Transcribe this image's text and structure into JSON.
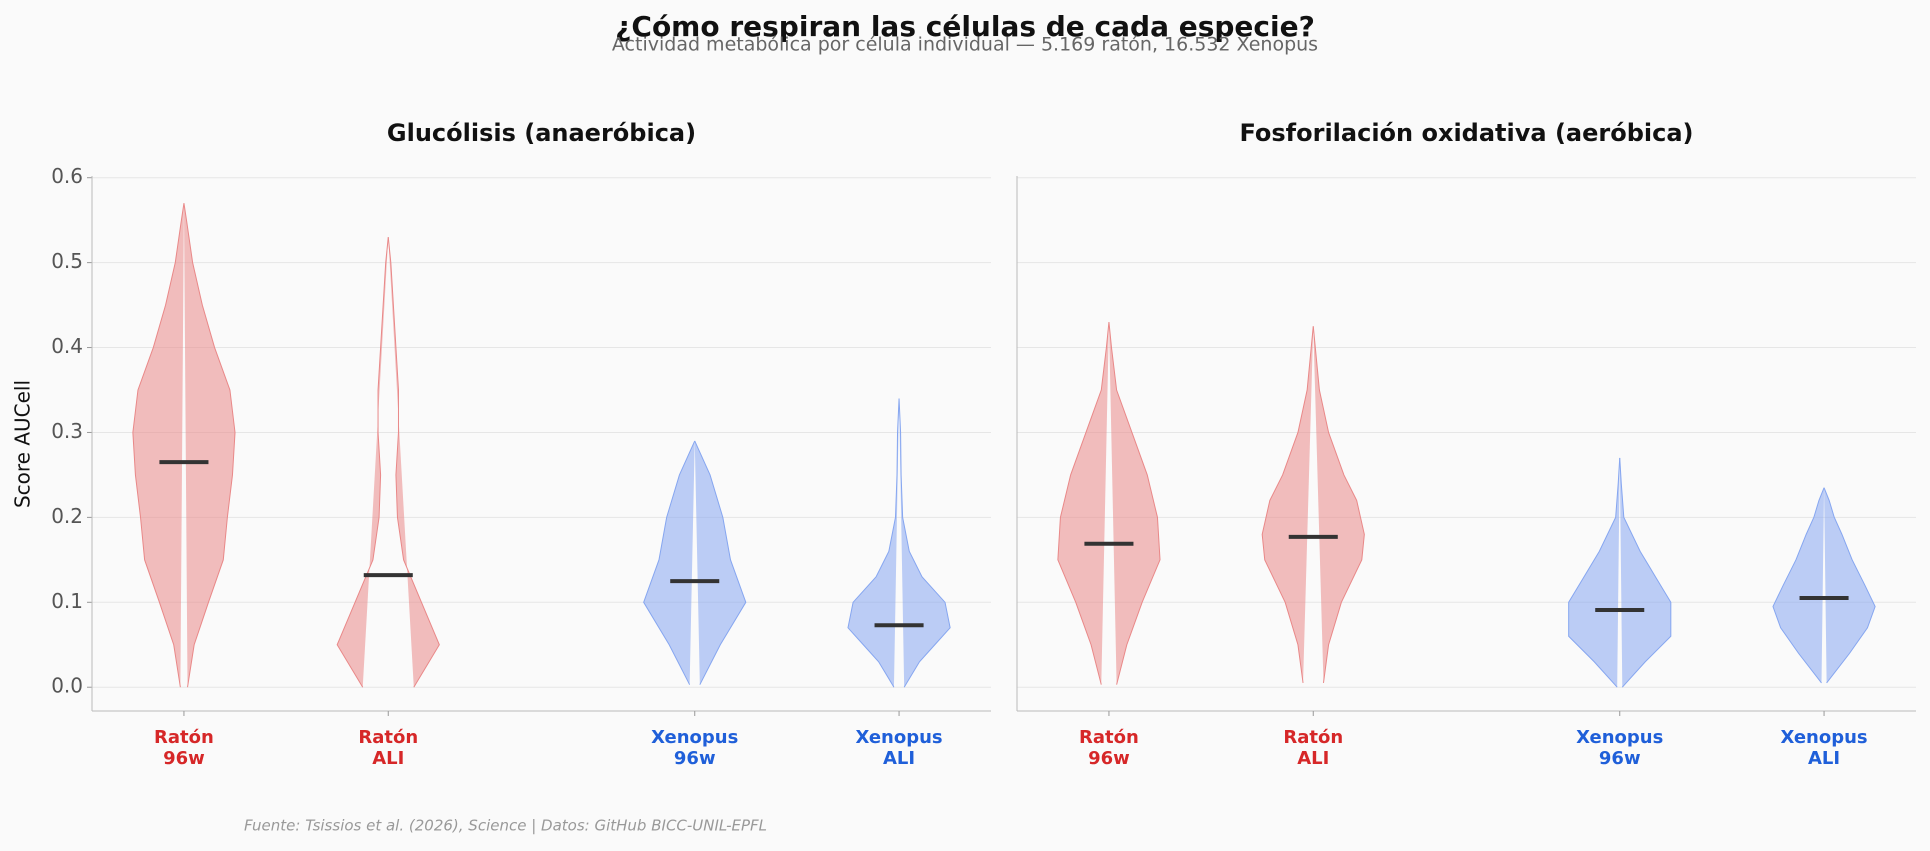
{
  "title": "¿Cómo respiran las células de cada especie?",
  "subtitle": "Actividad metabólica por célula individual — 5.169 ratón, 16.532 Xenopus",
  "source": "Fuente: Tsissios et al. (2026), Science | Datos: GitHub BICC-UNIL-EPFL",
  "chart_data": [
    {
      "type": "violin",
      "title": "Glucólisis (anaeróbica)",
      "ylabel": "Score AUCell",
      "categories": [
        [
          "Ratón",
          "96w"
        ],
        [
          "Ratón",
          "ALI"
        ],
        [
          "Xenopus",
          "96w"
        ],
        [
          "Xenopus",
          "ALI"
        ]
      ],
      "x": [
        0,
        1,
        2.5,
        3.5
      ],
      "label_colors": [
        "#d62728",
        "#d62728",
        "#1f5fd9",
        "#1f5fd9"
      ],
      "colors": [
        "#e98888",
        "#e98888",
        "#86a6f0",
        "#86a6f0"
      ],
      "xlim": [
        -0.45,
        3.95
      ],
      "ylim": [
        -0.028,
        0.602
      ],
      "yticks": [
        {
          "value": 0,
          "label": "0.0"
        },
        0.1,
        0.2,
        0.3,
        0.4,
        0.5,
        0.6
      ],
      "grid": true,
      "medians": [
        0.265,
        0.132,
        0.125,
        0.073
      ],
      "violins": [
        {
          "y": [
            0,
            0.05,
            0.1,
            0.15,
            0.2,
            0.25,
            0.3,
            0.35,
            0.4,
            0.45,
            0.5,
            0.55,
            0.57
          ],
          "width": [
            0.07,
            0.2,
            0.48,
            0.77,
            0.85,
            0.95,
            1.0,
            0.9,
            0.6,
            0.36,
            0.17,
            0.05,
            0
          ]
        },
        {
          "y": [
            0,
            0.05,
            0.1,
            0.15,
            0.2,
            0.25,
            0.3,
            0.35,
            0.4,
            0.45,
            0.5,
            0.53
          ],
          "width": [
            0.5,
            1.0,
            0.65,
            0.3,
            0.18,
            0.15,
            0.2,
            0.2,
            0.15,
            0.1,
            0.05,
            0
          ]
        },
        {
          "y": [
            0.003,
            0.05,
            0.1,
            0.15,
            0.2,
            0.25,
            0.29
          ],
          "width": [
            0.1,
            0.5,
            1.0,
            0.7,
            0.55,
            0.3,
            0
          ]
        },
        {
          "y": [
            0,
            0.03,
            0.05,
            0.07,
            0.1,
            0.13,
            0.16,
            0.2,
            0.25,
            0.3,
            0.34
          ],
          "width": [
            0.1,
            0.4,
            0.7,
            1.0,
            0.9,
            0.45,
            0.2,
            0.07,
            0.04,
            0.03,
            0
          ]
        }
      ]
    },
    {
      "type": "violin",
      "title": "Fosforilación oxidativa (aeróbica)",
      "categories": [
        [
          "Ratón",
          "96w"
        ],
        [
          "Ratón",
          "ALI"
        ],
        [
          "Xenopus",
          "96w"
        ],
        [
          "Xenopus",
          "ALI"
        ]
      ],
      "x": [
        0,
        1,
        2.5,
        3.5
      ],
      "label_colors": [
        "#d62728",
        "#d62728",
        "#1f5fd9",
        "#1f5fd9"
      ],
      "colors": [
        "#e98888",
        "#e98888",
        "#86a6f0",
        "#86a6f0"
      ],
      "xlim": [
        -0.45,
        3.95
      ],
      "ylim": [
        -0.028,
        0.602
      ],
      "yticks": [
        0,
        0.1,
        0.2,
        0.3,
        0.4,
        0.5,
        0.6
      ],
      "grid": true,
      "medians": [
        0.169,
        0.177,
        0.091,
        0.105
      ],
      "violins": [
        {
          "y": [
            0.003,
            0.05,
            0.1,
            0.15,
            0.2,
            0.25,
            0.3,
            0.35,
            0.4,
            0.43
          ],
          "width": [
            0.15,
            0.35,
            0.65,
            1.0,
            0.95,
            0.75,
            0.45,
            0.15,
            0.05,
            0
          ]
        },
        {
          "y": [
            0.005,
            0.05,
            0.1,
            0.15,
            0.18,
            0.22,
            0.25,
            0.3,
            0.35,
            0.4,
            0.425
          ],
          "width": [
            0.2,
            0.3,
            0.55,
            0.95,
            1.0,
            0.85,
            0.6,
            0.3,
            0.12,
            0.04,
            0
          ]
        },
        {
          "y": [
            0,
            0.03,
            0.06,
            0.1,
            0.13,
            0.16,
            0.2,
            0.24,
            0.27
          ],
          "width": [
            0.05,
            0.5,
            1.0,
            1.0,
            0.7,
            0.4,
            0.08,
            0.03,
            0
          ]
        },
        {
          "y": [
            0.005,
            0.04,
            0.07,
            0.095,
            0.12,
            0.15,
            0.18,
            0.2,
            0.22,
            0.235
          ],
          "width": [
            0.05,
            0.5,
            0.85,
            1.0,
            0.8,
            0.55,
            0.35,
            0.2,
            0.1,
            0
          ]
        }
      ]
    }
  ]
}
